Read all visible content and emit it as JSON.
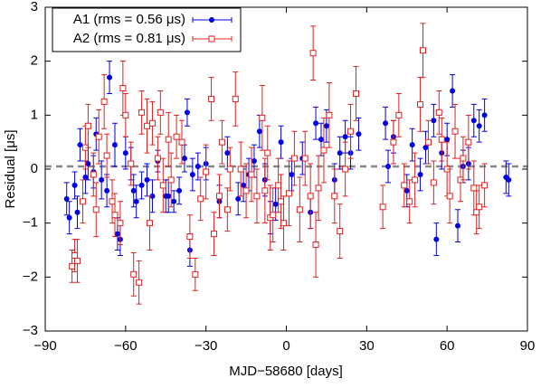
{
  "chart_data": {
    "type": "scatter",
    "x_label": "MJD−58680 [days]",
    "y_label": "Residual [μs]",
    "xlim": [
      -90,
      90
    ],
    "ylim": [
      -3,
      3
    ],
    "xticks": [
      {
        "value": -90,
        "label": "−90"
      },
      {
        "value": -60,
        "label": "−60"
      },
      {
        "value": -30,
        "label": "−30"
      },
      0,
      30,
      60,
      90
    ],
    "yticks": [
      {
        "value": -3,
        "label": "−3"
      },
      {
        "value": -2,
        "label": "−2"
      },
      {
        "value": -1,
        "label": "−1"
      },
      0,
      1,
      2,
      3
    ],
    "reference_line": 0.05,
    "legend": "top-left",
    "series": [
      {
        "name": "A1 (rms = 0.56 μs)",
        "color": "#0000e0",
        "marker": "circle",
        "x": [
          -82,
          -81,
          -79,
          -78,
          -77,
          -75,
          -74,
          -72,
          -71,
          -69,
          -67,
          -66,
          -64,
          -63,
          -62,
          -60,
          -58,
          -57,
          -56,
          -54,
          -52,
          -50,
          -48,
          -45,
          -44,
          -42,
          -40,
          -38,
          -37,
          -36,
          -35,
          -33,
          -30,
          -25,
          -22,
          -18,
          -16,
          -14,
          -12,
          -10,
          -8,
          -6,
          -4,
          -2,
          2,
          6,
          9,
          11,
          13,
          15,
          18,
          20,
          22,
          24,
          27,
          37,
          38,
          40,
          45,
          47,
          50,
          52,
          55,
          56,
          58,
          60,
          62,
          64,
          66,
          68,
          70,
          72,
          74,
          82,
          83
        ],
        "values": [
          -0.55,
          -0.9,
          -0.3,
          -0.8,
          0.45,
          -0.15,
          0.1,
          -0.05,
          0.65,
          -0.2,
          -0.4,
          1.7,
          0.45,
          -1.2,
          -1.3,
          0.3,
          0.1,
          -0.4,
          -0.6,
          -0.3,
          -0.2,
          -0.5,
          0.15,
          -0.5,
          -0.5,
          -0.6,
          -0.4,
          0.2,
          1.05,
          -1.5,
          -0.1,
          0.05,
          0.1,
          -0.6,
          0.3,
          -0.55,
          -0.3,
          -0.1,
          0.15,
          0.7,
          -0.2,
          -0.9,
          -0.65,
          0.5,
          -0.1,
          0.2,
          -0.8,
          0.85,
          0.55,
          0.8,
          -0.2,
          0.3,
          0.6,
          0.3,
          0.65,
          0.85,
          0.05,
          0.6,
          -0.4,
          0.45,
          -0.1,
          0.4,
          0.9,
          -1.3,
          0.3,
          0.55,
          1.45,
          -1.05,
          0.05,
          0.1,
          0.9,
          0.8,
          1.0,
          -0.15,
          -0.2
        ],
        "errors": [
          0.3,
          0.3,
          0.25,
          0.3,
          0.3,
          0.3,
          0.3,
          0.3,
          0.3,
          0.35,
          0.3,
          0.3,
          0.4,
          0.3,
          0.3,
          0.3,
          0.3,
          0.3,
          0.3,
          0.25,
          0.3,
          0.3,
          0.2,
          0.3,
          0.3,
          0.2,
          0.25,
          0.25,
          0.25,
          0.3,
          0.3,
          0.25,
          0.3,
          0.3,
          0.3,
          0.3,
          0.3,
          0.3,
          0.3,
          0.3,
          0.3,
          0.3,
          0.3,
          0.3,
          0.3,
          0.3,
          0.3,
          0.3,
          0.3,
          0.3,
          0.3,
          0.3,
          0.3,
          0.3,
          0.3,
          0.3,
          0.3,
          0.3,
          0.3,
          0.3,
          0.3,
          0.3,
          0.3,
          0.3,
          0.3,
          0.3,
          0.3,
          0.3,
          0.3,
          0.3,
          0.3,
          0.3,
          0.3,
          0.3,
          0.3
        ]
      },
      {
        "name": "A2 (rms = 0.81 μs)",
        "color": "#e02020",
        "marker": "square",
        "x": [
          -80,
          -79,
          -78,
          -76,
          -75,
          -74,
          -72,
          -71,
          -70,
          -68,
          -67,
          -65,
          -64,
          -62,
          -61,
          -60,
          -58,
          -57,
          -55,
          -54,
          -52,
          -51,
          -50,
          -48,
          -47,
          -46,
          -44,
          -43,
          -41,
          -39,
          -36,
          -34,
          -32,
          -30,
          -28,
          -27,
          -25,
          -24,
          -22,
          -21,
          -19,
          -17,
          -15,
          -13,
          -11,
          -9,
          -8,
          -7,
          -6,
          -5,
          -3,
          -2,
          -1,
          1,
          3,
          5,
          7,
          9,
          10,
          11,
          12,
          14,
          16,
          18,
          20,
          22,
          24,
          26,
          36,
          40,
          42,
          44,
          46,
          48,
          50,
          51,
          53,
          55,
          57,
          58,
          60,
          61,
          63,
          65,
          66,
          68,
          70,
          71,
          72,
          74
        ],
        "values": [
          -1.8,
          -1.6,
          -1.7,
          -0.6,
          0.4,
          0.8,
          -0.1,
          -0.75,
          0.6,
          1.25,
          0.25,
          -0.6,
          -0.85,
          -1.0,
          1.5,
          1.0,
          0.1,
          -1.95,
          -2.1,
          1.05,
          0.8,
          -1.0,
          0.85,
          0.2,
          1.05,
          -0.3,
          0.55,
          -0.2,
          0.6,
          0.5,
          -1.25,
          -1.95,
          -0.55,
          -0.05,
          1.3,
          -1.2,
          -0.5,
          0.5,
          -0.75,
          0.0,
          1.3,
          0.0,
          -0.4,
          -0.1,
          -0.5,
          0.95,
          -0.4,
          0.3,
          -0.9,
          -0.85,
          -0.3,
          -0.6,
          -1.0,
          -0.45,
          0.2,
          -0.75,
          0.2,
          -0.5,
          2.15,
          -1.4,
          -0.35,
          0.35,
          1.0,
          -0.5,
          -1.15,
          0.0,
          0.7,
          1.4,
          -0.7,
          0.5,
          1.0,
          -0.3,
          -0.6,
          -0.2,
          1.2,
          2.2,
          0.5,
          -0.25,
          1.05,
          0.55,
          0.0,
          -0.5,
          0.7,
          -0.2,
          0.2,
          0.5,
          -0.35,
          -0.8,
          -0.7,
          -0.3
        ],
        "errors": [
          0.3,
          0.3,
          0.4,
          0.4,
          0.4,
          0.4,
          0.4,
          0.5,
          0.5,
          0.5,
          0.4,
          0.4,
          0.4,
          0.4,
          0.5,
          0.4,
          0.4,
          0.4,
          0.4,
          0.4,
          0.5,
          0.5,
          0.4,
          0.4,
          0.4,
          0.5,
          0.5,
          0.5,
          0.4,
          0.4,
          0.4,
          0.3,
          0.4,
          0.5,
          0.4,
          0.4,
          0.4,
          0.4,
          0.4,
          0.4,
          0.5,
          0.5,
          0.5,
          0.5,
          0.5,
          0.6,
          0.6,
          0.5,
          0.6,
          0.5,
          0.5,
          0.5,
          0.5,
          0.6,
          0.5,
          0.6,
          0.5,
          0.6,
          0.5,
          0.6,
          0.6,
          0.6,
          0.6,
          0.5,
          0.5,
          0.5,
          0.5,
          0.5,
          0.4,
          0.4,
          0.4,
          0.4,
          0.4,
          0.5,
          0.5,
          0.5,
          0.4,
          0.4,
          0.4,
          0.4,
          0.5,
          0.5,
          0.5,
          0.4,
          0.4,
          0.5,
          0.5,
          0.4,
          0.4,
          0.4
        ]
      }
    ]
  }
}
